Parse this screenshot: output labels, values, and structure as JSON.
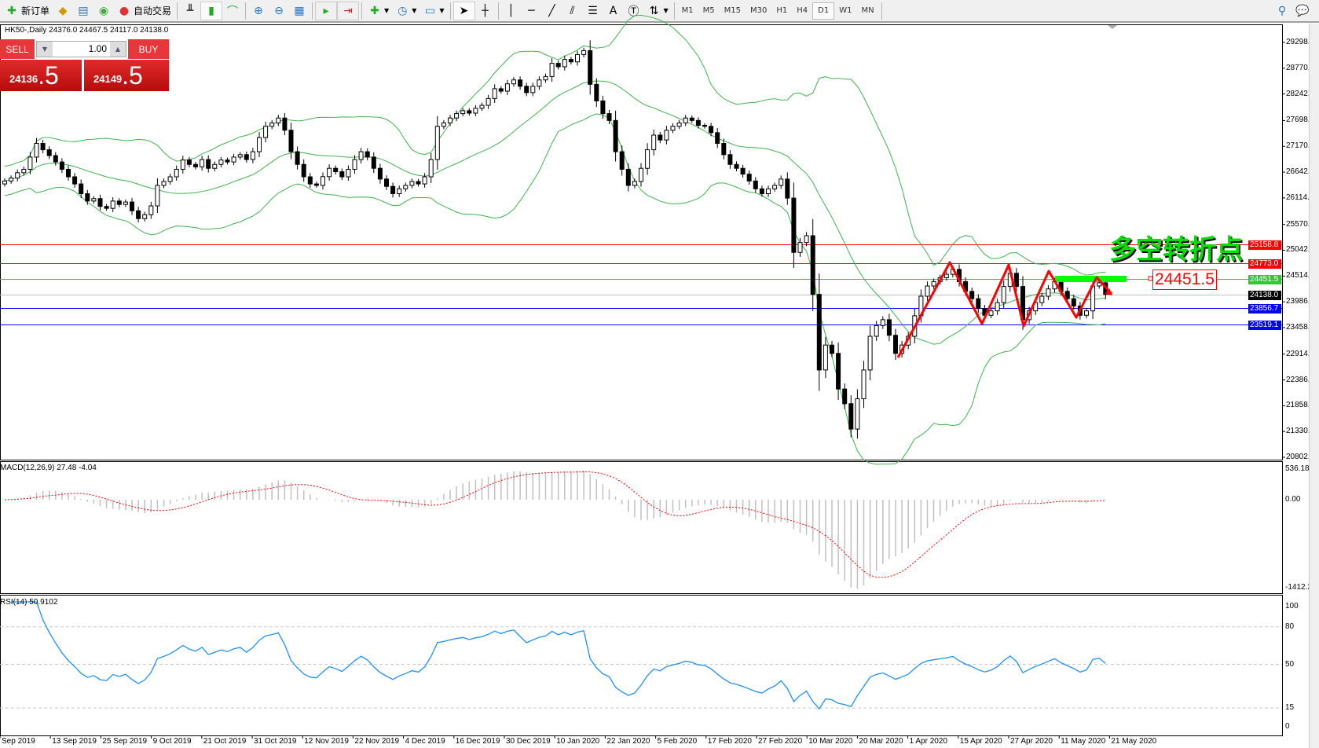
{
  "toolbar": {
    "items": [
      {
        "label": "新订单",
        "icon": "new-order-icon"
      },
      {
        "label": "",
        "icon": "history-icon"
      },
      {
        "label": "",
        "icon": "market-watch-icon"
      },
      {
        "label": "",
        "icon": "signal-icon"
      },
      {
        "label": "自动交易",
        "icon": "auto-trading-icon"
      }
    ],
    "timeframes": [
      "M1",
      "M5",
      "M15",
      "M30",
      "H1",
      "H4",
      "D1",
      "W1",
      "MN"
    ],
    "active_timeframe": "D1"
  },
  "chart": {
    "info": "HK50-,Daily  24376.0 24467.5 24117.0 24138.0",
    "symbol": "HK50-",
    "period": "Daily"
  },
  "trade": {
    "sell": "SELL",
    "buy": "BUY",
    "lot": "1.00",
    "sell_small": "24136",
    "sell_big": ".5",
    "buy_small": "24149",
    "buy_big": ".5"
  },
  "annotation": {
    "title": "多空转折点",
    "level": "24451.5"
  },
  "price_axis": [
    "29298.0",
    "28770.0",
    "28242.0",
    "27698.0",
    "27170.0",
    "26642.0",
    "26114.0",
    "25570.0",
    "25042.0",
    "24514.0",
    "23986.0",
    "23458.0",
    "22914.0",
    "22386.0",
    "21858.0",
    "21330.0",
    "20802.0"
  ],
  "levels": [
    {
      "price": 25158.8,
      "label": "25158.8",
      "color": "#ff0000"
    },
    {
      "price": 24773.0,
      "label": "24773.0",
      "color": "#ff0000"
    },
    {
      "price": 24451.5,
      "label": "24451.5",
      "color": "#32c832"
    },
    {
      "price": 24138.0,
      "label": "24138.0",
      "color": "#000000",
      "line": "#c0c0c0"
    },
    {
      "price": 23856.7,
      "label": "23856.7",
      "color": "#0000ff"
    },
    {
      "price": 23519.1,
      "label": "23519.1",
      "color": "#0000ff"
    }
  ],
  "macd": {
    "label": "MACD(12,26,9) 27.48 -4.04",
    "axis": [
      "536.18",
      "0.00",
      "-1412.34"
    ]
  },
  "rsi": {
    "label": "RSI(14) 50.9102",
    "axis": [
      "100",
      "80",
      "50",
      "15",
      "0"
    ]
  },
  "dates": [
    "Sep 2019",
    "13 Sep 2019",
    "25 Sep 2019",
    "9 Oct 2019",
    "21 Oct 2019",
    "31 Oct 2019",
    "12 Nov 2019",
    "22 Nov 2019",
    "4 Dec 2019",
    "16 Dec 2019",
    "30 Dec 2019",
    "10 Jan 2020",
    "22 Jan 2020",
    "5 Feb 2020",
    "17 Feb 2020",
    "27 Feb 2020",
    "10 Mar 2020",
    "20 Mar 2020",
    "1 Apr 2020",
    "15 Apr 2020",
    "27 Apr 2020",
    "11 May 2020",
    "21 May 2020"
  ],
  "chart_data": {
    "type": "candlestick",
    "ylim": [
      20802,
      29298
    ],
    "closes": [
      26460,
      26520,
      26630,
      26700,
      26950,
      27230,
      27100,
      26980,
      26850,
      26700,
      26546,
      26400,
      26200,
      26050,
      26100,
      25940,
      25900,
      26050,
      25980,
      26030,
      25850,
      25690,
      25770,
      25950,
      26370,
      26450,
      26546,
      26700,
      26890,
      26800,
      26750,
      26900,
      26720,
      26800,
      26890,
      26850,
      26950,
      27000,
      26900,
      27060,
      27350,
      27580,
      27650,
      27750,
      27500,
      27060,
      26800,
      26546,
      26400,
      26370,
      26550,
      26720,
      26650,
      26546,
      26700,
      26900,
      27060,
      26950,
      26720,
      26500,
      26350,
      26200,
      26300,
      26370,
      26450,
      26400,
      26546,
      26900,
      27580,
      27650,
      27750,
      27840,
      27900,
      27850,
      27950,
      28010,
      28150,
      28350,
      28300,
      28450,
      28530,
      28400,
      28270,
      28400,
      28530,
      28600,
      28870,
      28800,
      28950,
      28900,
      29050,
      29130,
      28440,
      28100,
      27840,
      27700,
      27060,
      26700,
      26370,
      26450,
      26720,
      27100,
      27400,
      27300,
      27500,
      27580,
      27650,
      27750,
      27700,
      27600,
      27580,
      27450,
      27230,
      27000,
      26800,
      26720,
      26600,
      26460,
      26300,
      26200,
      26300,
      26370,
      26500,
      26110,
      24998,
      25200,
      25340,
      24138,
      22590,
      23100,
      22930,
      22200,
      21900,
      21380,
      22000,
      22590,
      23280,
      23500,
      23620,
      23300,
      22930,
      23100,
      23280,
      23700,
      24100,
      24310,
      24400,
      24480,
      24550,
      24650,
      24400,
      24200,
      24050,
      23850,
      23710,
      23800,
      23970,
      24300,
      24570,
      24300,
      23620,
      23800,
      23970,
      24100,
      24250,
      24400,
      24200,
      24050,
      23900,
      23710,
      23800,
      24310,
      24376,
      24138
    ],
    "indicators": [
      "Bollinger Bands",
      "MACD(12,26,9)",
      "RSI(14)"
    ],
    "colors": {
      "bands": "#3cb44b",
      "macd_hist": "#c0c0c0",
      "macd_signal": "#ff0000",
      "rsi": "#1e90ff"
    }
  }
}
